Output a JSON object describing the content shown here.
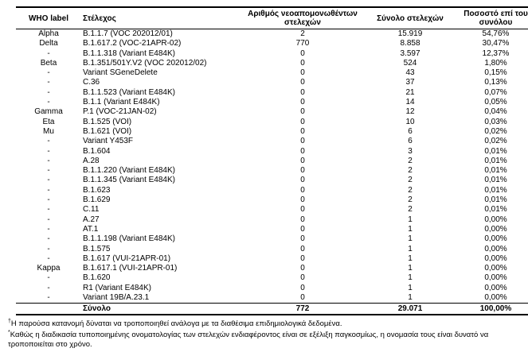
{
  "table": {
    "headers": [
      "WHO label",
      "Στέλεχος",
      "Αριθμός νεοαπομονωθέντων στελεχών",
      "Σύνολο στελεχών",
      "Ποσοστό επί του συνόλου"
    ],
    "rows": [
      [
        "Alpha",
        "B.1.1.7 (VOC 202012/01)",
        "2",
        "15.919",
        "54,76%"
      ],
      [
        "Delta",
        "B.1.617.2 (VOC-21APR-02)",
        "770",
        "8.858",
        "30,47%"
      ],
      [
        "-",
        "B.1.1.318 (Variant E484K)",
        "0",
        "3.597",
        "12,37%"
      ],
      [
        "Beta",
        "B.1.351/501Y.V2 (VOC 202012/02)",
        "0",
        "524",
        "1,80%"
      ],
      [
        "-",
        "Variant SGeneDelete",
        "0",
        "43",
        "0,15%"
      ],
      [
        "-",
        "C.36",
        "0",
        "37",
        "0,13%"
      ],
      [
        "-",
        "B.1.1.523 (Variant E484K)",
        "0",
        "21",
        "0,07%"
      ],
      [
        "-",
        "B.1.1 (Variant E484K)",
        "0",
        "14",
        "0,05%"
      ],
      [
        "Gamma",
        "P.1 (VOC-21JAN-02)",
        "0",
        "12",
        "0,04%"
      ],
      [
        "Eta",
        "B.1.525 (VOI)",
        "0",
        "10",
        "0,03%"
      ],
      [
        "Mu",
        "B.1.621 (VOI)",
        "0",
        "6",
        "0,02%"
      ],
      [
        "-",
        "Variant Y453F",
        "0",
        "6",
        "0,02%"
      ],
      [
        "-",
        "B.1.604",
        "0",
        "3",
        "0,01%"
      ],
      [
        "-",
        "A.28",
        "0",
        "2",
        "0,01%"
      ],
      [
        "-",
        "B.1.1.220 (Variant E484K)",
        "0",
        "2",
        "0,01%"
      ],
      [
        "-",
        "B.1.1.345 (Variant E484K)",
        "0",
        "2",
        "0,01%"
      ],
      [
        "-",
        "B.1.623",
        "0",
        "2",
        "0,01%"
      ],
      [
        "-",
        "B.1.629",
        "0",
        "2",
        "0,01%"
      ],
      [
        "-",
        "C.11",
        "0",
        "2",
        "0,01%"
      ],
      [
        "-",
        "A.27",
        "0",
        "1",
        "0,00%"
      ],
      [
        "-",
        "AT.1",
        "0",
        "1",
        "0,00%"
      ],
      [
        "-",
        "B.1.1.198 (Variant E484K)",
        "0",
        "1",
        "0,00%"
      ],
      [
        "-",
        "B.1.575",
        "0",
        "1",
        "0,00%"
      ],
      [
        "-",
        "B.1.617 (VUI-21APR-01)",
        "0",
        "1",
        "0,00%"
      ],
      [
        "Kappa",
        "B.1.617.1 (VUI-21APR-01)",
        "0",
        "1",
        "0,00%"
      ],
      [
        "-",
        "B.1.620",
        "0",
        "1",
        "0,00%"
      ],
      [
        "-",
        "R1 (Variant E484K)",
        "0",
        "1",
        "0,00%"
      ],
      [
        "-",
        "Variant 19B/A.23.1",
        "0",
        "1",
        "0,00%"
      ]
    ],
    "total": {
      "who_label": "",
      "label": "Σύνολο",
      "new_isolates": "772",
      "total_strains": "29.071",
      "percentage": "100,00%"
    }
  },
  "footnotes": [
    {
      "marker": "†",
      "text": "Η παρούσα κατανομή δύναται να τροποποιηθεί ανάλογα με τα διαθέσιμα επιδημιολογικά δεδομένα."
    },
    {
      "marker": "*",
      "text": "Καθώς η διαδικασία τυποποιημένης ονοματολογίας των στελεχών ενδιαφέροντος είναι σε εξέλιξη παγκοσμίως, η ονομασία τους είναι δυνατό να τροποποιείται στο χρόνο."
    }
  ]
}
